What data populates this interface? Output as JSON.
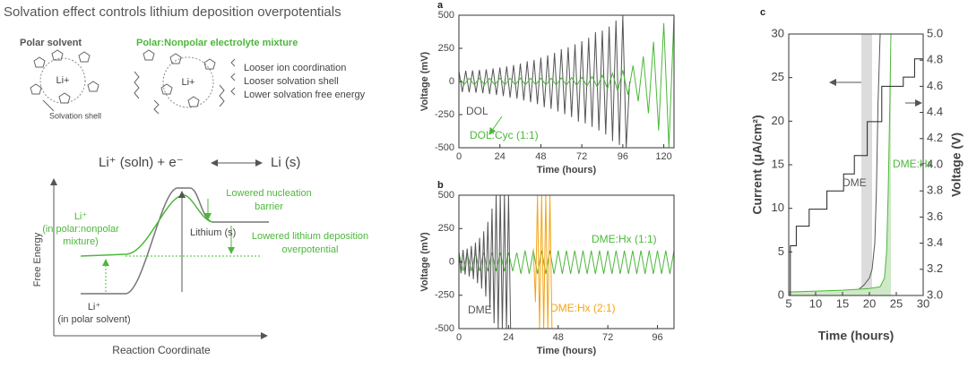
{
  "figure": {
    "title": "Solvation effect controls lithium deposition overpotentials",
    "polar_solvent": "Polar solvent",
    "mixture_heading": "Polar:Nonpolar electrolyte mixture",
    "li_ion": "Li+",
    "solvation_shell": "Solvation shell",
    "mixture_traits": [
      "Looser ion coordination",
      "Looser solvation shell",
      "Lower solvation free energy"
    ],
    "reaction_left": "Li⁺ (soln) + e⁻",
    "reaction_right": "Li (s)",
    "y_axis": "Free Energy",
    "x_axis": "Reaction Coordinate",
    "nucleation": [
      "Lowered nucleation",
      "barrier"
    ],
    "mixture_state": [
      "Li⁺",
      "(in polar:nonpolar",
      "mixture)"
    ],
    "lithium": "Lithium (s)",
    "overpotential": [
      "Lowered lithium deposition",
      "overpotential"
    ],
    "solvent_state": [
      "Li⁺",
      "(in polar solvent)"
    ]
  },
  "chart_data": [
    {
      "type": "line",
      "panel_label": "a",
      "x_label": "Time (hours)",
      "y_label": "Voltage (mV)",
      "xlim": [
        0,
        126
      ],
      "ylim": [
        -500,
        500
      ],
      "xticks": [
        0,
        24,
        48,
        72,
        96,
        120
      ],
      "yticks": [
        -500,
        -250,
        0,
        250,
        500
      ],
      "series": [
        {
          "name": "DOL",
          "color": "#555555",
          "x": [
            0,
            2,
            4,
            6,
            8,
            10,
            12,
            14,
            16,
            18,
            20,
            22,
            24,
            26,
            28,
            30,
            32,
            34,
            36,
            38,
            40,
            42,
            44,
            46,
            48,
            50,
            52,
            54,
            56,
            58,
            60,
            62,
            64,
            66,
            68,
            70,
            72,
            74,
            76,
            78,
            80,
            82,
            84,
            86,
            88,
            90,
            92,
            94,
            96,
            98,
            100
          ],
          "values": [
            80,
            -80,
            81,
            -82,
            83,
            -85,
            87,
            -89,
            92,
            -95,
            98,
            -102,
            105,
            -110,
            114,
            -121,
            124,
            -130,
            136,
            -143,
            153,
            -156,
            163,
            -171,
            180,
            -194,
            197,
            -207,
            216,
            -226,
            244,
            -247,
            258,
            -269,
            280,
            -303,
            304,
            -317,
            330,
            -343,
            372,
            -370,
            384,
            -400,
            415,
            -449,
            460,
            -480,
            500,
            -500,
            0
          ]
        },
        {
          "name": "DOL:Cyc (1:1)",
          "color": "#4cb83a",
          "x": [
            0,
            3,
            6,
            9,
            12,
            15,
            18,
            21,
            24,
            27,
            30,
            33,
            36,
            39,
            42,
            45,
            48,
            51,
            54,
            57,
            60,
            63,
            66,
            69,
            72,
            75,
            78,
            81,
            84,
            87,
            90,
            93,
            96,
            99,
            102,
            105,
            108,
            111,
            114,
            117,
            120,
            123,
            126
          ],
          "values": [
            25,
            -25,
            25,
            -25,
            25,
            -25,
            25,
            -25,
            25,
            -25,
            25,
            -25,
            25,
            -25,
            25,
            -25,
            25,
            -25,
            25,
            -26,
            27,
            -28,
            29,
            -30,
            32,
            -35,
            38,
            -42,
            48,
            -55,
            62,
            -72,
            85,
            -100,
            120,
            -150,
            190,
            -240,
            300,
            -370,
            440,
            -500,
            500
          ]
        }
      ]
    },
    {
      "type": "line",
      "panel_label": "b",
      "x_label": "Time (hours)",
      "y_label": "Voltage (mV)",
      "xlim": [
        0,
        104
      ],
      "ylim": [
        -500,
        500
      ],
      "xticks": [
        0,
        24,
        48,
        72,
        96
      ],
      "yticks": [
        -500,
        -250,
        0,
        250,
        500
      ],
      "series": [
        {
          "name": "DME:Hx (1:1)",
          "color": "#4cb83a",
          "x": [
            0,
            2,
            4,
            6,
            8,
            10,
            12,
            14,
            16,
            18,
            20,
            22,
            24,
            26,
            28,
            30,
            32,
            34,
            36,
            38,
            40,
            42,
            44,
            46,
            48,
            50,
            52,
            54,
            56,
            58,
            60,
            62,
            64,
            66,
            68,
            70,
            72,
            74,
            76,
            78,
            80,
            82,
            84,
            86,
            88,
            90,
            92,
            94,
            96,
            98,
            100,
            102,
            104
          ],
          "values": [
            70,
            -70,
            70,
            -70,
            70,
            -70,
            70,
            -70,
            70,
            -70,
            70,
            -70,
            70,
            -70,
            70,
            -90,
            85,
            -90,
            85,
            -90,
            85,
            -90,
            85,
            -90,
            85,
            -90,
            85,
            -90,
            85,
            -90,
            85,
            -90,
            85,
            -90,
            85,
            -90,
            85,
            -90,
            85,
            -90,
            85,
            -90,
            85,
            -90,
            85,
            -90,
            85,
            -90,
            85,
            -90,
            85,
            -90,
            85
          ]
        },
        {
          "name": "DME",
          "color": "#555555",
          "x": [
            0,
            1,
            2,
            3,
            4,
            5,
            6,
            7,
            8,
            9,
            10,
            11,
            12,
            13,
            14,
            15,
            16,
            17,
            18,
            19,
            20,
            21,
            22,
            23,
            24,
            25
          ],
          "values": [
            80,
            -85,
            90,
            -95,
            100,
            -110,
            120,
            -130,
            145,
            -160,
            180,
            -200,
            230,
            -260,
            300,
            -350,
            400,
            -460,
            500,
            -500,
            500,
            -500,
            500,
            -500,
            500,
            -500
          ]
        },
        {
          "name": "DME:Hx (2:1)",
          "color": "#f2a516",
          "x": [
            36,
            37,
            38,
            39,
            40,
            41,
            42,
            43,
            44,
            45
          ],
          "values": [
            100,
            -300,
            500,
            -500,
            500,
            -500,
            500,
            -500,
            500,
            -500
          ]
        }
      ]
    },
    {
      "type": "line",
      "panel_label": "c",
      "x_label": "Time (hours)",
      "y_label": "Current (μA/cm²)",
      "y2_label": "Voltage (V)",
      "xlim": [
        5,
        30
      ],
      "ylim": [
        0,
        30
      ],
      "y2lim": [
        3,
        5
      ],
      "xticks": [
        5,
        10,
        15,
        20,
        25,
        30
      ],
      "yticks": [
        0,
        5,
        10,
        15,
        20,
        25,
        30
      ],
      "y2ticks": [
        {
          "value": 3,
          "label": "3.0"
        },
        3.2,
        3.4,
        3.6,
        3.8,
        {
          "value": 4,
          "label": "4.0"
        },
        4.2,
        4.4,
        4.6,
        4.8,
        {
          "value": 5,
          "label": "5.0"
        }
      ],
      "shaded_spans": [
        {
          "range": [
            18.5,
            20.5
          ],
          "color": "#dcdcdc"
        }
      ],
      "series": [
        {
          "name": "DME",
          "color": "#555555",
          "x": [
            5,
            10,
            15,
            17,
            18,
            19,
            20,
            20.5,
            21,
            21.3,
            21.6,
            22
          ],
          "values": [
            0.2,
            0.3,
            0.4,
            0.5,
            0.7,
            1.2,
            2,
            3,
            6,
            12,
            22,
            30
          ]
        },
        {
          "name": "DME:Hx",
          "color": "#4cb83a",
          "fill": "#cfe9c8",
          "x": [
            5,
            10,
            15,
            20,
            22,
            22.8,
            23.2,
            23.5,
            23.8,
            24
          ],
          "values": [
            0.4,
            0.5,
            0.6,
            0.8,
            1,
            2,
            5,
            12,
            22,
            30
          ]
        },
        {
          "color": "#222222",
          "axis": "y2",
          "x": [
            5.3,
            5.3,
            6.4,
            6.4,
            8.8,
            8.8,
            12.1,
            12.1,
            15.2,
            15.2,
            17.2,
            17.2,
            19.6,
            19.6,
            22.3,
            22.3,
            26.3,
            26.3,
            28.4,
            28.4,
            30
          ],
          "values": [
            3,
            3.38,
            3.38,
            3.53,
            3.53,
            3.66,
            3.66,
            3.8,
            3.8,
            3.93,
            3.93,
            4.07,
            4.07,
            4.33,
            4.33,
            4.6,
            4.6,
            4.67,
            4.67,
            4.81,
            4.81
          ]
        }
      ]
    }
  ]
}
